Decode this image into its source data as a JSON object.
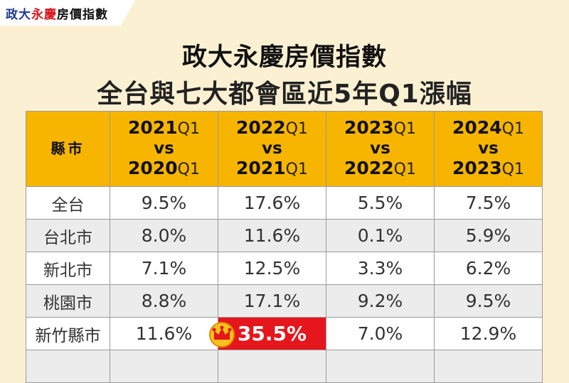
{
  "logo": {
    "parts": [
      "政大",
      "永慶",
      "房價指數"
    ]
  },
  "title": {
    "line1": "政大永慶房價指數",
    "line2": "全台與七大都會區近5年Q1漲幅"
  },
  "table": {
    "corner": "縣市",
    "columns": [
      {
        "top": [
          "2021",
          "Q1"
        ],
        "mid": "vs",
        "bottom": [
          "2020",
          "Q1"
        ]
      },
      {
        "top": [
          "2022",
          "Q1"
        ],
        "mid": "vs",
        "bottom": [
          "2021",
          "Q1"
        ]
      },
      {
        "top": [
          "2023",
          "Q1"
        ],
        "mid": "vs",
        "bottom": [
          "2022",
          "Q1"
        ]
      },
      {
        "top": [
          "2024",
          "Q1"
        ],
        "mid": "vs",
        "bottom": [
          "2023",
          "Q1"
        ]
      }
    ],
    "rows": [
      {
        "label": "全台",
        "cells": [
          "9.5%",
          "17.6%",
          "5.5%",
          "7.5%"
        ]
      },
      {
        "label": "台北市",
        "cells": [
          "8.0%",
          "11.6%",
          "0.1%",
          "5.9%"
        ]
      },
      {
        "label": "新北市",
        "cells": [
          "7.1%",
          "12.5%",
          "3.3%",
          "6.2%"
        ]
      },
      {
        "label": "桃園市",
        "cells": [
          "8.8%",
          "17.1%",
          "9.2%",
          "9.5%"
        ]
      },
      {
        "label": "新竹縣市",
        "cells": [
          "11.6%",
          "35.5%",
          "7.0%",
          "12.9%"
        ]
      }
    ],
    "highlight": {
      "row": 4,
      "col": 1
    }
  }
}
